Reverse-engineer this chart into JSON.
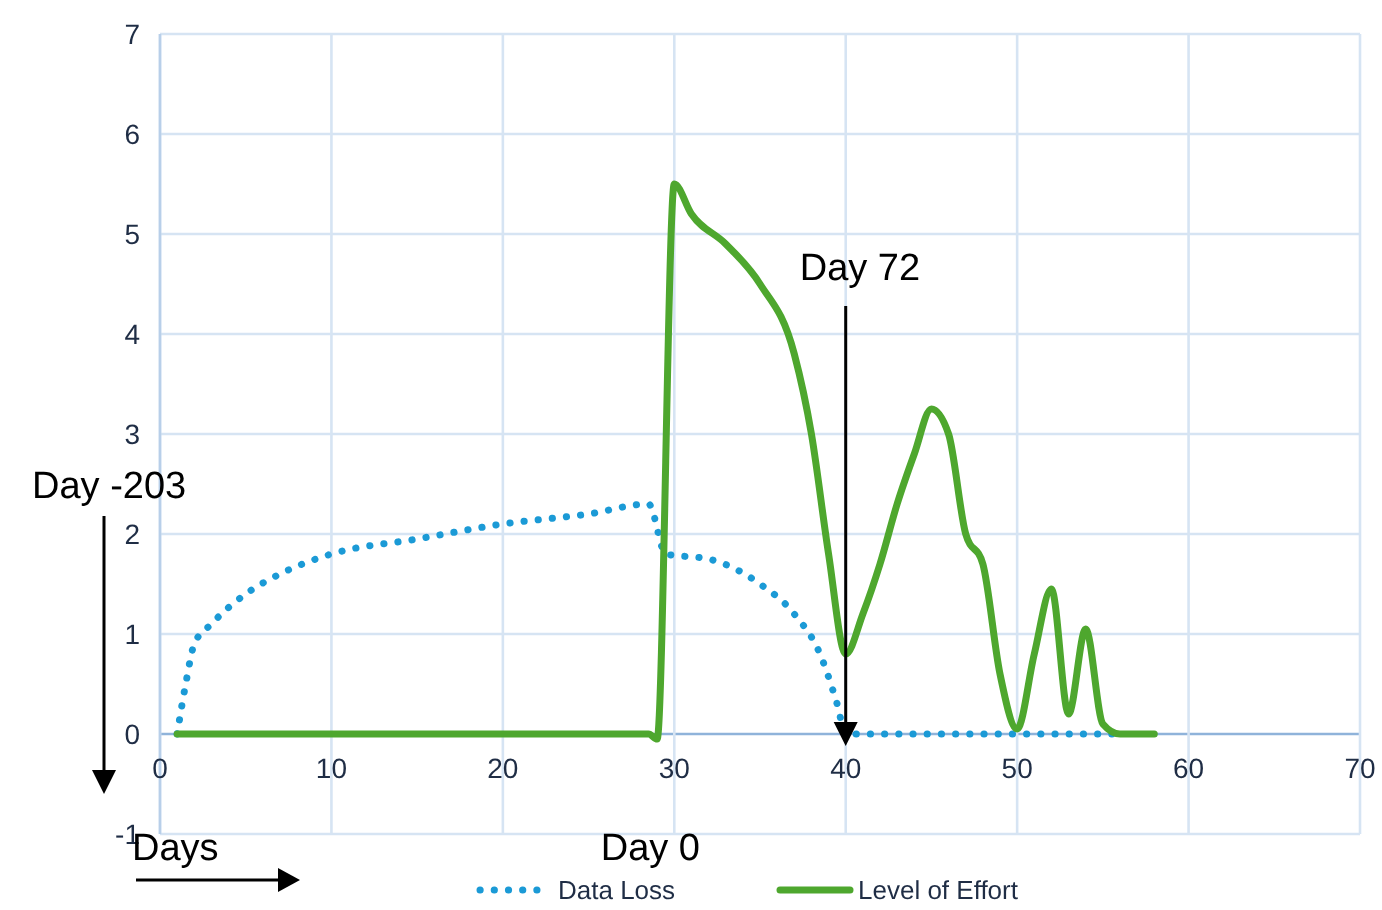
{
  "chart_data": {
    "type": "line",
    "xlim": [
      0,
      70
    ],
    "xticks": [
      0,
      10,
      20,
      30,
      40,
      50,
      60,
      70
    ],
    "ylim": [
      -1,
      7
    ],
    "yticks": [
      -1,
      0,
      1,
      2,
      3,
      4,
      5,
      6,
      7
    ],
    "grid": true,
    "legend": "bottom",
    "annotations": [
      "Day -203",
      "Days",
      "Day 0"
    ],
    "ref_lines": [
      {
        "axis": "x",
        "value": 40,
        "label": "Day 72",
        "color": "#000000"
      }
    ],
    "series": [
      {
        "name": "Data Loss",
        "color": "#1b9ad6",
        "line_style": "dotted",
        "x": [
          1,
          1.5,
          2,
          3,
          5,
          7,
          10,
          15,
          20,
          25,
          28.5,
          29.5,
          32,
          35,
          37,
          38.5,
          39.5,
          40,
          41,
          45,
          50,
          56
        ],
        "values": [
          0,
          0.5,
          0.9,
          1.1,
          1.4,
          1.6,
          1.8,
          1.95,
          2.1,
          2.2,
          2.3,
          1.8,
          1.75,
          1.5,
          1.2,
          0.8,
          0.3,
          0,
          0,
          0,
          0,
          0
        ]
      },
      {
        "name": "Level of Effort",
        "color": "#4ea72e",
        "line_style": "solid",
        "x": [
          1,
          10,
          20,
          28.5,
          29,
          30,
          31,
          33,
          35,
          37,
          38,
          39,
          40,
          41,
          42,
          43,
          44,
          45,
          46,
          47,
          48,
          49,
          50,
          51,
          52,
          53,
          54,
          55,
          56,
          58
        ],
        "values": [
          0,
          0,
          0,
          0,
          -0.05,
          5.5,
          5.2,
          4.9,
          4.5,
          3.8,
          3.0,
          1.8,
          0.8,
          1.2,
          1.7,
          2.3,
          2.8,
          3.25,
          3.0,
          2.0,
          1.7,
          0.6,
          0.05,
          0.8,
          1.45,
          0.2,
          1.05,
          0.1,
          0,
          0
        ]
      }
    ]
  }
}
